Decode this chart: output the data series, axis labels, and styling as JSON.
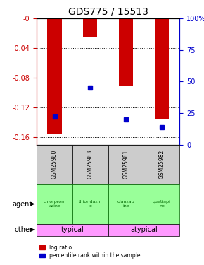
{
  "title": "GDS775 / 15513",
  "samples": [
    "GSM25980",
    "GSM25983",
    "GSM25981",
    "GSM25982"
  ],
  "log_ratios": [
    -0.155,
    -0.025,
    -0.09,
    -0.135
  ],
  "percentile_ranks": [
    22,
    45,
    20,
    14
  ],
  "ylim_left": [
    -0.17,
    0.0
  ],
  "ylim_right": [
    0,
    100
  ],
  "yticks_left": [
    -0.16,
    -0.12,
    -0.08,
    -0.04,
    0.0
  ],
  "yticks_right": [
    0,
    25,
    50,
    75,
    100
  ],
  "bar_color": "#cc0000",
  "dot_color": "#0000cc",
  "bar_width": 0.4,
  "agents": [
    "chlorprom\nazine",
    "thioridazin\ne",
    "olanzap\nine",
    "quetiapi\nne"
  ],
  "other_color": "#ff99ff",
  "grid_color": "#000000",
  "sample_bg": "#cccccc",
  "legend_red_label": "log ratio",
  "legend_blue_label": "percentile rank within the sample",
  "left_axis_color": "#cc0000",
  "right_axis_color": "#0000cc"
}
